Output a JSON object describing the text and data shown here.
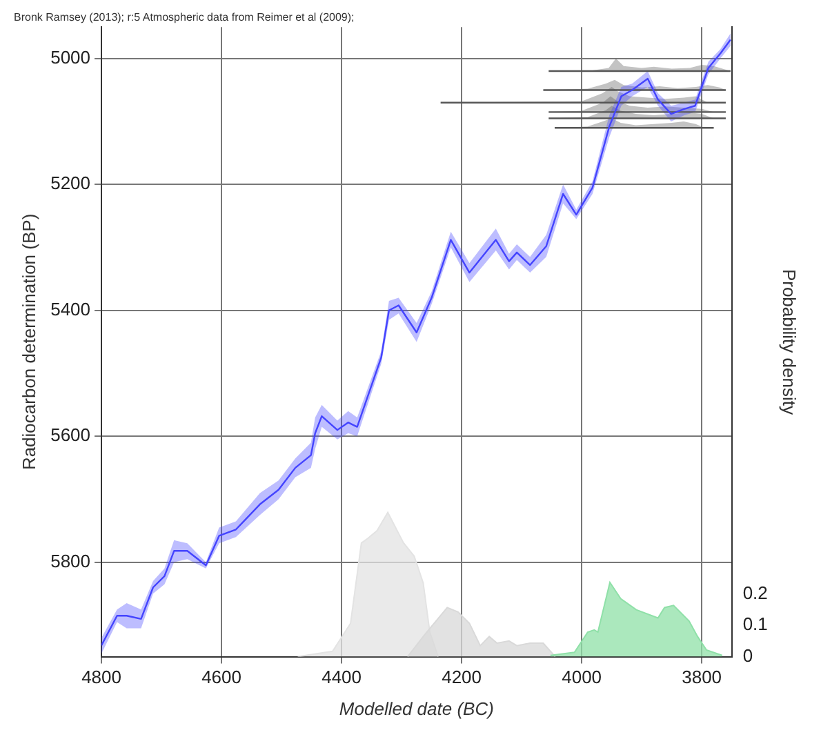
{
  "chart_data": {
    "type": "line",
    "title": "Bronk Ramsey (2013); r:5 Atmospheric data from Reimer et al (2009);",
    "xlabel": "Modelled date (BC)",
    "ylabel": "Radiocarbon determination (BP)",
    "y2label": "Probability density",
    "xlim": [
      4800,
      3750
    ],
    "xticks": [
      4800,
      4600,
      4400,
      4200,
      4000,
      3800
    ],
    "ylim": [
      5950,
      4950
    ],
    "yticks": [
      5000,
      5200,
      5400,
      5600,
      5800
    ],
    "y2lim": [
      0,
      2
    ],
    "y2ticks": [
      0,
      0.1,
      0.2
    ],
    "grid": true,
    "legend": false,
    "series": [
      {
        "type": "line",
        "color": "#4444ff",
        "x": [
          4800,
          4774,
          4758,
          4734,
          4714,
          4695,
          4679,
          4657,
          4626,
          4604,
          4576,
          4536,
          4505,
          4477,
          4451,
          4444,
          4433,
          4407,
          4389,
          4374,
          4334,
          4321,
          4305,
          4275,
          4250,
          4218,
          4187,
          4143,
          4121,
          4108,
          4086,
          4059,
          4031,
          4009,
          3982,
          3954,
          3934,
          3916,
          3890,
          3873,
          3851,
          3829,
          3811,
          3789,
          3769,
          3752
        ],
        "values": [
          5932,
          5885,
          5885,
          5890,
          5840,
          5822,
          5782,
          5782,
          5805,
          5758,
          5748,
          5708,
          5685,
          5650,
          5630,
          5595,
          5568,
          5590,
          5578,
          5585,
          5475,
          5400,
          5392,
          5435,
          5380,
          5288,
          5340,
          5288,
          5322,
          5308,
          5328,
          5298,
          5215,
          5248,
          5205,
          5108,
          5060,
          5050,
          5032,
          5065,
          5088,
          5080,
          5075,
          5015,
          4992,
          4970
        ],
        "lower": [
          5920,
          5875,
          5865,
          5875,
          5830,
          5810,
          5765,
          5770,
          5800,
          5745,
          5735,
          5690,
          5670,
          5635,
          5610,
          5570,
          5550,
          5575,
          5560,
          5570,
          5465,
          5385,
          5380,
          5420,
          5370,
          5275,
          5325,
          5270,
          5310,
          5295,
          5315,
          5280,
          5200,
          5240,
          5195,
          5090,
          5045,
          5040,
          5020,
          5055,
          5075,
          5070,
          5065,
          5005,
          4985,
          4960
        ],
        "upper": [
          5945,
          5895,
          5905,
          5905,
          5850,
          5835,
          5800,
          5795,
          5810,
          5770,
          5760,
          5725,
          5700,
          5665,
          5650,
          5620,
          5585,
          5605,
          5595,
          5600,
          5485,
          5415,
          5405,
          5450,
          5390,
          5300,
          5355,
          5305,
          5335,
          5320,
          5340,
          5315,
          5230,
          5255,
          5215,
          5125,
          5075,
          5060,
          5045,
          5075,
          5100,
          5090,
          5085,
          5025,
          5000,
          4980
        ]
      },
      {
        "type": "area",
        "axis": "y2",
        "color": "#e3e3e3",
        "x": [
          4473,
          4415,
          4385,
          4367,
          4356,
          4341,
          4323,
          4297,
          4279,
          4264,
          4253,
          4239
        ],
        "values": [
          0,
          0.017,
          0.106,
          0.361,
          0.376,
          0.4,
          0.458,
          0.362,
          0.319,
          0.234,
          0.078,
          0
        ]
      },
      {
        "type": "area",
        "axis": "y2",
        "color": "#d9d9d9",
        "x": [
          4290,
          4261,
          4224,
          4206,
          4187,
          4169,
          4154,
          4141,
          4121,
          4108,
          4086,
          4064,
          4044
        ],
        "values": [
          0,
          0.071,
          0.156,
          0.142,
          0.106,
          0.035,
          0.064,
          0.043,
          0.05,
          0.035,
          0.043,
          0.043,
          0
        ]
      },
      {
        "type": "area",
        "axis": "y2",
        "color": "#8fe0a8",
        "x": [
          4052,
          4012,
          3990,
          3979,
          3973,
          3953,
          3935,
          3909,
          3873,
          3862,
          3847,
          3821,
          3807,
          3792,
          3766
        ],
        "values": [
          0.004,
          0.014,
          0.078,
          0.085,
          0.078,
          0.236,
          0.184,
          0.149,
          0.123,
          0.156,
          0.163,
          0.113,
          0.064,
          0.021,
          0.004
        ]
      },
      {
        "type": "line",
        "color": "#555555",
        "x": [
          4055,
          3990,
          3955,
          3943,
          3930,
          3900,
          3880,
          3850,
          3820,
          3800,
          3780,
          3752
        ],
        "values": [
          5020,
          5020,
          5020,
          5020,
          5020,
          5020,
          5020,
          5020,
          5020,
          5020,
          5020,
          5020
        ],
        "lower": [
          5020,
          5020,
          5015,
          5000,
          5012,
          5015,
          5013,
          5016,
          5015,
          5010,
          5012,
          5020
        ],
        "upper": [
          5020,
          5020,
          5020,
          5020,
          5020,
          5020,
          5020,
          5020,
          5020,
          5020,
          5020,
          5020
        ]
      },
      {
        "type": "line",
        "color": "#555555",
        "x": [
          4064,
          3990,
          3960,
          3945,
          3930,
          3900,
          3870,
          3840,
          3810,
          3790,
          3770,
          3760
        ],
        "values": [
          5050,
          5050,
          5050,
          5050,
          5050,
          5050,
          5050,
          5050,
          5050,
          5050,
          5050,
          5050
        ],
        "lower": [
          5050,
          5048,
          5040,
          5034,
          5042,
          5046,
          5044,
          5047,
          5045,
          5042,
          5046,
          5050
        ],
        "upper": [
          5050,
          5050,
          5050,
          5050,
          5050,
          5050,
          5050,
          5050,
          5050,
          5050,
          5050,
          5050
        ]
      },
      {
        "type": "line",
        "color": "#555555",
        "x": [
          4235,
          4000,
          3965,
          3950,
          3940,
          3920,
          3890,
          3860,
          3830,
          3810,
          3790,
          3760
        ],
        "values": [
          5070,
          5070,
          5070,
          5070,
          5070,
          5070,
          5070,
          5070,
          5070,
          5070,
          5070,
          5070
        ],
        "lower": [
          5070,
          5068,
          5055,
          5045,
          5052,
          5060,
          5062,
          5064,
          5062,
          5060,
          5070,
          5070
        ],
        "upper": [
          5070,
          5070,
          5070,
          5070,
          5070,
          5070,
          5070,
          5070,
          5070,
          5070,
          5070,
          5070
        ]
      },
      {
        "type": "line",
        "color": "#555555",
        "x": [
          4055,
          4000,
          3965,
          3952,
          3940,
          3920,
          3890,
          3860,
          3830,
          3800,
          3780,
          3760
        ],
        "values": [
          5085,
          5085,
          5085,
          5085,
          5085,
          5085,
          5085,
          5085,
          5085,
          5085,
          5085,
          5085
        ],
        "lower": [
          5085,
          5083,
          5070,
          5060,
          5068,
          5075,
          5078,
          5076,
          5078,
          5080,
          5085,
          5085
        ],
        "upper": [
          5085,
          5085,
          5085,
          5085,
          5085,
          5085,
          5085,
          5085,
          5085,
          5085,
          5085,
          5085
        ]
      },
      {
        "type": "line",
        "color": "#555555",
        "x": [
          4055,
          3990,
          3960,
          3950,
          3935,
          3910,
          3880,
          3850,
          3820,
          3800,
          3780,
          3760
        ],
        "values": [
          5095,
          5095,
          5095,
          5095,
          5095,
          5095,
          5095,
          5095,
          5095,
          5095,
          5095,
          5095
        ],
        "lower": [
          5095,
          5093,
          5082,
          5075,
          5083,
          5088,
          5090,
          5088,
          5086,
          5088,
          5095,
          5095
        ],
        "upper": [
          5095,
          5095,
          5095,
          5095,
          5095,
          5095,
          5095,
          5095,
          5095,
          5095,
          5095,
          5095
        ]
      },
      {
        "type": "line",
        "color": "#555555",
        "x": [
          4045,
          3990,
          3965,
          3950,
          3935,
          3910,
          3880,
          3850,
          3830,
          3810,
          3795,
          3780
        ],
        "values": [
          5110,
          5110,
          5110,
          5110,
          5110,
          5110,
          5110,
          5110,
          5110,
          5110,
          5110,
          5110
        ],
        "lower": [
          5110,
          5108,
          5100,
          5095,
          5102,
          5106,
          5104,
          5102,
          5100,
          5104,
          5110,
          5110
        ],
        "upper": [
          5110,
          5110,
          5110,
          5110,
          5110,
          5110,
          5110,
          5110,
          5110,
          5110,
          5110,
          5110
        ]
      }
    ]
  }
}
